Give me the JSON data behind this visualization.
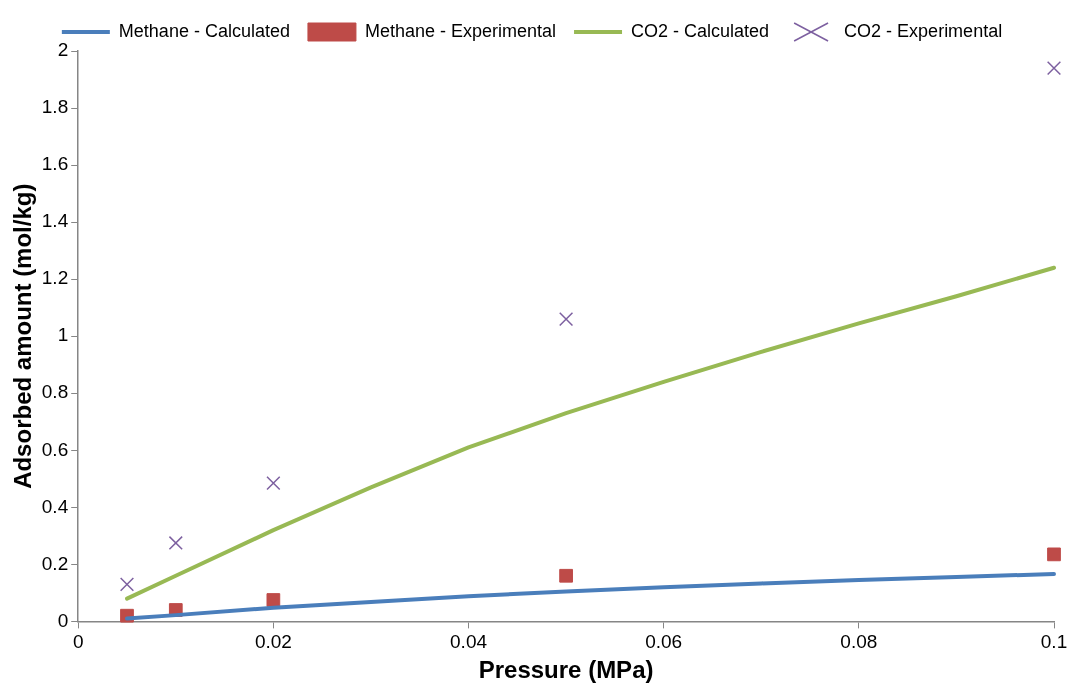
{
  "chart_data": {
    "type": "scatter",
    "xlabel": "Pressure (MPa)",
    "ylabel": "Adsorbed amount (mol/kg)",
    "xlim": [
      0,
      0.1
    ],
    "xticks": [
      0,
      0.02,
      0.04,
      0.06,
      0.08,
      0.1
    ],
    "ylim": [
      0,
      2
    ],
    "yticks": [
      0,
      0.2,
      0.4,
      0.6,
      0.8,
      1,
      1.2,
      1.4,
      1.6,
      1.8,
      2
    ],
    "grid": false,
    "legend": "top",
    "series": [
      {
        "name": "Methane - Calculated",
        "type": "line",
        "color": "#4a7ebb",
        "line_style": "solid",
        "marker": "none",
        "x": [
          0.005,
          0.01,
          0.02,
          0.03,
          0.04,
          0.05,
          0.06,
          0.07,
          0.08,
          0.09,
          0.1
        ],
        "values": [
          0.01,
          0.022,
          0.048,
          0.068,
          0.088,
          0.105,
          0.12,
          0.133,
          0.145,
          0.156,
          0.166
        ]
      },
      {
        "name": "Methane - Experimental",
        "type": "scatter",
        "color": "#be4b48",
        "marker": "square",
        "x": [
          0.005,
          0.01,
          0.02,
          0.05,
          0.1
        ],
        "values": [
          0.02,
          0.04,
          0.075,
          0.16,
          0.235
        ]
      },
      {
        "name": "CO2 - Calculated",
        "type": "line",
        "color": "#98b954",
        "line_style": "solid",
        "marker": "none",
        "x": [
          0.005,
          0.01,
          0.02,
          0.03,
          0.04,
          0.05,
          0.06,
          0.07,
          0.08,
          0.09,
          0.1
        ],
        "values": [
          0.08,
          0.16,
          0.32,
          0.47,
          0.61,
          0.73,
          0.84,
          0.945,
          1.045,
          1.14,
          1.24
        ]
      },
      {
        "name": "CO2 - Experimental",
        "type": "scatter",
        "color": "#7d60a0",
        "marker": "cross",
        "x": [
          0.005,
          0.01,
          0.02,
          0.05,
          0.1
        ],
        "values": [
          0.13,
          0.275,
          0.485,
          1.06,
          1.94
        ]
      }
    ]
  }
}
